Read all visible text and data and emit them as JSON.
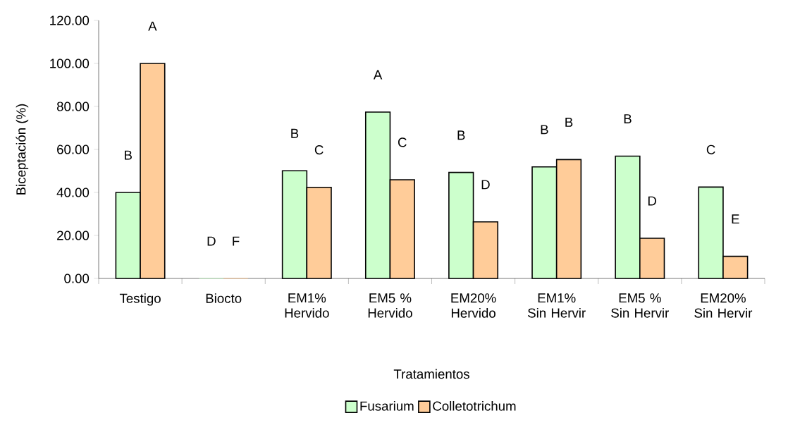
{
  "chart_data": {
    "type": "bar",
    "xlabel": "Tratamientos",
    "ylabel": "Biceptación (%)",
    "categories": [
      "Testigo",
      "Biocto",
      "EM1% Hervido",
      "EM5 % Hervido",
      "EM20% Hervido",
      "EM1% Sin Hervir",
      "EM5 % Sin Hervir",
      "EM20% Sin Hervir"
    ],
    "series": [
      {
        "name": "Fusarium",
        "color": "#ccffcc",
        "values": [
          40.0,
          0,
          50.1,
          77.4,
          49.3,
          51.9,
          56.9,
          42.5
        ]
      },
      {
        "name": "Colletotrichum",
        "color": "#ffcc99",
        "values": [
          100.0,
          0,
          42.4,
          45.9,
          26.3,
          55.3,
          18.7,
          10.3
        ]
      }
    ],
    "ylim": [
      0,
      120
    ],
    "yticks": [
      {
        "value": 0,
        "label": "0.00"
      },
      {
        "value": 20,
        "label": "20.00"
      },
      {
        "value": 40,
        "label": "40.00"
      },
      {
        "value": 60,
        "label": "60.00"
      },
      {
        "value": 80,
        "label": "80.00"
      },
      {
        "value": 100,
        "label": "100.00"
      },
      {
        "value": 120,
        "label": "120.00"
      }
    ],
    "grid": false,
    "legend": "bottom",
    "annotations": [
      "B",
      "A",
      "D",
      "F",
      "B",
      "C",
      "A",
      "C",
      "B",
      "D",
      "B",
      "B",
      "B",
      "D",
      "C",
      "E"
    ]
  }
}
